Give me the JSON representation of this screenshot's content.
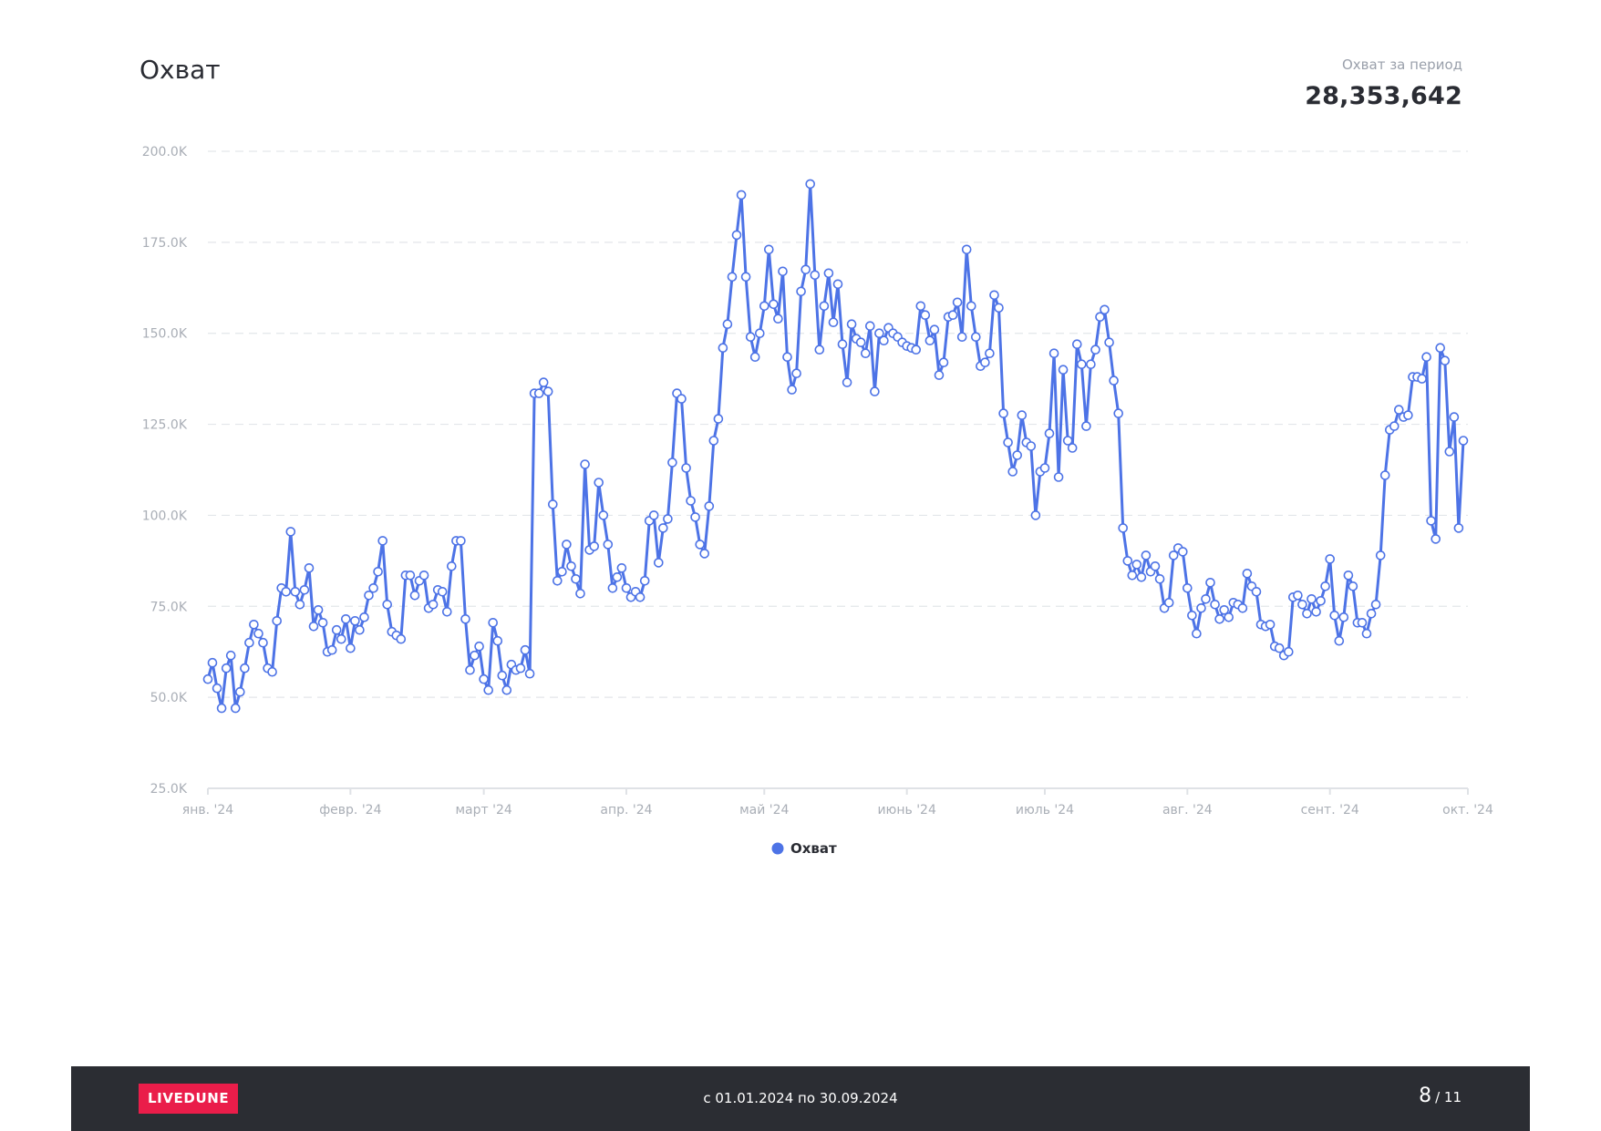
{
  "header": {
    "title": "Охват",
    "kpi_label": "Охват за период",
    "kpi_value": "28,353,642"
  },
  "footer": {
    "logo": "LIVEDUNE",
    "period": "с 01.01.2024 по 30.09.2024",
    "page_current": "8",
    "page_total": "/ 11"
  },
  "colors": {
    "line": "#4d73e6",
    "grid": "#e3e6ea",
    "axis_text": "#a9aeb6",
    "footer_bg": "#2b2d33",
    "logo_bg": "#ea1d4a"
  },
  "chart_data": {
    "type": "line",
    "title": "Охват",
    "xlabel": "",
    "ylabel": "",
    "x_start": "2024-01-01",
    "x_end": "2024-09-30",
    "ylim": [
      25000,
      200000
    ],
    "y_ticks": [
      {
        "value": 25000,
        "label": "25.0K"
      },
      {
        "value": 50000,
        "label": "50.0K"
      },
      {
        "value": 75000,
        "label": "75.0K"
      },
      {
        "value": 100000,
        "label": "100.0K"
      },
      {
        "value": 125000,
        "label": "125.0K"
      },
      {
        "value": 150000,
        "label": "150.0K"
      },
      {
        "value": 175000,
        "label": "175.0K"
      },
      {
        "value": 200000,
        "label": "200.0K"
      }
    ],
    "x_ticks": [
      {
        "date": "2024-01-01",
        "label": "янв. '24"
      },
      {
        "date": "2024-02-01",
        "label": "февр. '24"
      },
      {
        "date": "2024-03-01",
        "label": "март '24"
      },
      {
        "date": "2024-04-01",
        "label": "апр. '24"
      },
      {
        "date": "2024-05-01",
        "label": "май '24"
      },
      {
        "date": "2024-06-01",
        "label": "июнь '24"
      },
      {
        "date": "2024-07-01",
        "label": "июль '24"
      },
      {
        "date": "2024-08-01",
        "label": "авг. '24"
      },
      {
        "date": "2024-09-01",
        "label": "сент. '24"
      },
      {
        "date": "2024-10-01",
        "label": "окт. '24"
      }
    ],
    "grid": true,
    "legend_position": "bottom-center",
    "series": [
      {
        "name": "Охват",
        "color": "#4d73e6",
        "values": [
          55000,
          59500,
          52500,
          47000,
          58000,
          61500,
          47000,
          51500,
          58000,
          65000,
          70000,
          67500,
          65000,
          58000,
          57000,
          71000,
          80000,
          79000,
          95500,
          79000,
          75500,
          79500,
          85500,
          69500,
          74000,
          70500,
          62500,
          63000,
          68500,
          66000,
          71500,
          63500,
          71000,
          68500,
          72000,
          78000,
          80000,
          84500,
          93000,
          75500,
          68000,
          67000,
          66000,
          83500,
          83500,
          78000,
          82000,
          83500,
          74500,
          75500,
          79500,
          79000,
          73500,
          86000,
          93000,
          93000,
          71500,
          57500,
          61500,
          64000,
          55000,
          52000,
          70500,
          65500,
          56000,
          52000,
          59000,
          57500,
          58000,
          63000,
          56500,
          133500,
          133500,
          136500,
          134000,
          103000,
          82000,
          84500,
          92000,
          86000,
          82500,
          78500,
          114000,
          90500,
          91500,
          109000,
          100000,
          92000,
          80000,
          83000,
          85500,
          80000,
          77500,
          79000,
          77500,
          82000,
          98500,
          100000,
          87000,
          96500,
          99000,
          114500,
          133500,
          132000,
          113000,
          104000,
          99500,
          92000,
          89500,
          102500,
          120500,
          126500,
          146000,
          152500,
          165500,
          177000,
          188000,
          165500,
          149000,
          143500,
          150000,
          157500,
          173000,
          158000,
          154000,
          167000,
          143500,
          134500,
          139000,
          161500,
          167500,
          191000,
          166000,
          145500,
          157500,
          166500,
          153000,
          163500,
          147000,
          136500,
          152500,
          148500,
          147500,
          144500,
          152000,
          134000,
          150000,
          148000,
          151500,
          150000,
          149000,
          147500,
          146500,
          146000,
          145500,
          157500,
          155000,
          148000,
          151000,
          138500,
          142000,
          154500,
          155000,
          158500,
          149000,
          173000,
          157500,
          149000,
          141000,
          142000,
          144500,
          160500,
          157000,
          128000,
          120000,
          112000,
          116500,
          127500,
          120000,
          119000,
          100000,
          112000,
          113000,
          122500,
          144500,
          110500,
          140000,
          120500,
          118500,
          147000,
          141500,
          124500,
          141500,
          145500,
          154500,
          156500,
          147500,
          137000,
          128000,
          96500,
          87500,
          83500,
          86500,
          83000,
          89000,
          84500,
          86000,
          82500,
          74500,
          76000,
          89000,
          91000,
          90000,
          80000,
          72500,
          67500,
          74500,
          77000,
          81500,
          75500,
          71500,
          74000,
          72000,
          76000,
          75500,
          74500,
          84000,
          80500,
          79000,
          70000,
          69500,
          70000,
          64000,
          63500,
          61500,
          62500,
          77500,
          78000,
          75500,
          73000,
          77000,
          73500,
          76500,
          80500,
          88000,
          72500,
          65500,
          72000,
          83500,
          80500,
          70500,
          70500,
          67500,
          73000,
          75500,
          89000,
          111000,
          123500,
          124500,
          129000,
          127000,
          127500,
          138000,
          138000,
          137500,
          143500,
          98500,
          93500,
          146000,
          142500,
          117500,
          127000,
          96500,
          120500
        ]
      }
    ]
  }
}
